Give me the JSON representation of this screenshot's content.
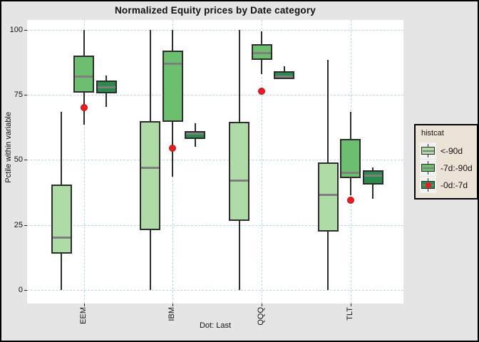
{
  "chart_data": {
    "type": "boxplot",
    "title": "Normalized Equity prices by Date category",
    "ylabel": "Pctile within variable",
    "xlabel": "Dot: Last",
    "categories": [
      "EEM",
      "IBM",
      "QQQ",
      "TLT"
    ],
    "yticks": [
      0,
      25,
      50,
      75,
      100
    ],
    "ylim": [
      -5,
      104
    ],
    "grid": "dashed",
    "legend": {
      "title": "histcat",
      "position": "right",
      "entries": [
        {
          "label": "<-90d",
          "color": "#afdca6",
          "dot": false
        },
        {
          "label": "-7d:-90d",
          "color": "#6cbf6e",
          "dot": false
        },
        {
          "label": "-0d:-7d",
          "color": "#2a8c4a",
          "dot": true
        }
      ]
    },
    "series": [
      {
        "name": "<-90d",
        "color": "#afdca6",
        "boxes": [
          {
            "category": "EEM",
            "low": 0,
            "q1": 14,
            "median": 20,
            "q3": 40.5,
            "high": 68.5
          },
          {
            "category": "IBM",
            "low": 0,
            "q1": 23,
            "median": 47,
            "q3": 65,
            "high": 100
          },
          {
            "category": "QQQ",
            "low": 0,
            "q1": 26.5,
            "median": 42,
            "q3": 64.5,
            "high": 100
          },
          {
            "category": "TLT",
            "low": 0,
            "q1": 22.5,
            "median": 36.5,
            "q3": 49,
            "high": 88.5
          }
        ]
      },
      {
        "name": "-7d:-90d",
        "color": "#6cbf6e",
        "boxes": [
          {
            "category": "EEM",
            "low": 63.5,
            "q1": 76,
            "median": 82,
            "q3": 90,
            "high": 100
          },
          {
            "category": "IBM",
            "low": 43.5,
            "q1": 64.5,
            "median": 87,
            "q3": 92,
            "high": 100
          },
          {
            "category": "QQQ",
            "low": 83,
            "q1": 88.5,
            "median": 91,
            "q3": 94.5,
            "high": 99.5
          },
          {
            "category": "TLT",
            "low": 36.5,
            "q1": 43,
            "median": 45,
            "q3": 58,
            "high": 68.5
          }
        ]
      },
      {
        "name": "-0d:-7d",
        "color": "#2a8c4a",
        "boxes": [
          {
            "category": "EEM",
            "low": 70.5,
            "q1": 75.5,
            "median": 78,
            "q3": 80.5,
            "high": 82.5
          },
          {
            "category": "IBM",
            "low": 55,
            "q1": 58,
            "median": 60,
            "q3": 61,
            "high": 64
          },
          {
            "category": "QQQ",
            "low": 81,
            "q1": 81,
            "median": 82,
            "q3": 84,
            "high": 86
          },
          {
            "category": "TLT",
            "low": 35,
            "q1": 40.5,
            "median": 44,
            "q3": 46,
            "high": 47
          }
        ]
      }
    ],
    "dots": {
      "name": "Last",
      "color": "#ea1c21",
      "values": [
        {
          "category": "EEM",
          "value": 70
        },
        {
          "category": "IBM",
          "value": 54.5
        },
        {
          "category": "QQQ",
          "value": 76.5
        },
        {
          "category": "TLT",
          "value": 34.5
        }
      ]
    }
  },
  "style": {
    "outer_bg": "#e5e5e5",
    "panel_bg": "#ffffff",
    "grid_color": "#b3d9e5",
    "box_border": "#2d2d2d",
    "median_color": "#7f7f7f",
    "dot_color": "#ea1c21",
    "dot_border": "#b3100f",
    "legend_bg": "#ebe4d6",
    "legend_key_bg": "#f2f2f2"
  }
}
